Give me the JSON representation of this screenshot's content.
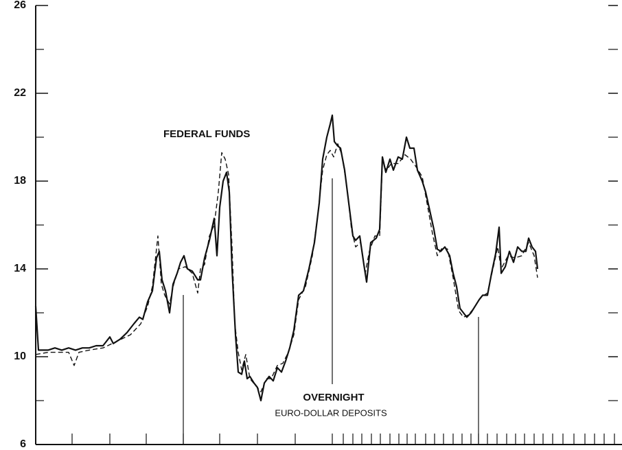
{
  "chart_data": {
    "type": "line",
    "annotations": [
      "FEDERAL FUNDS",
      "OVERNIGHT",
      "EURO-DOLLAR DEPOSITS"
    ],
    "xlim": [
      0,
      854
    ],
    "xticks": [
      53,
      108,
      161,
      215,
      268,
      323,
      378,
      432,
      448,
      462,
      475,
      489,
      502,
      516,
      529,
      541,
      553,
      568,
      581,
      594,
      608,
      621,
      634,
      645,
      658,
      672,
      686,
      699,
      712,
      726,
      739,
      753,
      768,
      784,
      800,
      814,
      828,
      843
    ],
    "ylim": [
      6,
      26
    ],
    "yticks": [
      6,
      10,
      14,
      18,
      22,
      26
    ],
    "yminorticks": [
      8,
      12,
      16,
      20,
      24
    ],
    "grid": false,
    "series": [
      {
        "color": "#111111",
        "dash": false,
        "x": [
          0,
          4,
          18,
          28,
          38,
          48,
          58,
          68,
          78,
          88,
          98,
          108,
          113,
          123,
          133,
          143,
          151,
          156,
          163,
          170,
          176,
          180,
          184,
          189,
          195,
          200,
          206,
          211,
          216,
          221,
          228,
          236,
          240,
          246,
          253,
          260,
          264,
          268,
          273,
          278,
          282,
          286,
          291,
          295,
          300,
          304,
          308,
          312,
          318,
          323,
          328,
          333,
          340,
          346,
          352,
          358,
          364,
          370,
          376,
          383,
          390,
          398,
          406,
          413,
          418,
          424,
          429,
          432,
          435,
          440,
          444,
          450,
          456,
          462,
          466,
          472,
          478,
          482,
          488,
          496,
          501,
          505,
          510,
          516,
          521,
          528,
          534,
          540,
          545,
          551,
          556,
          563,
          568,
          573,
          580,
          585,
          590,
          596,
          603,
          608,
          613,
          618,
          623,
          628,
          634,
          640,
          646,
          651,
          658,
          664,
          670,
          675,
          678,
          684,
          690,
          696,
          702,
          708,
          714,
          718,
          723,
          728,
          731
        ],
        "values": [
          12.3,
          10.3,
          10.3,
          10.4,
          10.3,
          10.4,
          10.3,
          10.4,
          10.4,
          10.5,
          10.5,
          10.9,
          10.6,
          10.8,
          11.1,
          11.5,
          11.8,
          11.7,
          12.5,
          13.0,
          14.5,
          14.8,
          13.5,
          13.0,
          12.0,
          13.3,
          13.8,
          14.3,
          14.6,
          14.0,
          13.9,
          13.5,
          13.5,
          14.5,
          15.3,
          16.3,
          14.6,
          16.8,
          18.0,
          18.4,
          17.5,
          14.0,
          11.0,
          9.3,
          9.2,
          9.8,
          9.0,
          9.1,
          8.8,
          8.6,
          8.0,
          8.8,
          9.1,
          8.9,
          9.5,
          9.3,
          9.8,
          10.4,
          11.2,
          12.8,
          13.0,
          14.0,
          15.2,
          17.0,
          19.0,
          20.0,
          20.6,
          21.0,
          19.8,
          19.6,
          19.5,
          18.5,
          17.0,
          15.5,
          15.3,
          15.5,
          14.2,
          13.4,
          15.2,
          15.4,
          15.8,
          19.1,
          18.4,
          19.0,
          18.5,
          19.1,
          19.0,
          20.0,
          19.5,
          19.5,
          18.5,
          18.0,
          17.5,
          16.8,
          15.8,
          14.9,
          14.8,
          15.0,
          14.6,
          13.8,
          13.2,
          12.2,
          12.0,
          11.8,
          12.0,
          12.3,
          12.6,
          12.8,
          12.8,
          13.8,
          14.7,
          15.9,
          13.8,
          14.1,
          14.8,
          14.3,
          15.0,
          14.8,
          14.8,
          15.4,
          15.0,
          14.8,
          14.0
        ]
      },
      {
        "color": "#111111",
        "dash": true,
        "x": [
          0,
          18,
          48,
          56,
          63,
          78,
          98,
          118,
          138,
          153,
          163,
          170,
          178,
          183,
          188,
          195,
          201,
          208,
          218,
          228,
          236,
          240,
          246,
          253,
          260,
          266,
          271,
          276,
          281,
          286,
          290,
          295,
          300,
          306,
          312,
          320,
          328,
          336,
          343,
          352,
          360,
          368,
          376,
          383,
          393,
          403,
          411,
          418,
          424,
          429,
          434,
          440,
          446,
          453,
          460,
          466,
          473,
          480,
          486,
          494,
          501,
          505,
          511,
          518,
          528,
          538,
          546,
          553,
          563,
          570,
          578,
          585,
          593,
          600,
          608,
          616,
          623,
          630,
          638,
          648,
          658,
          666,
          673,
          678,
          688,
          698,
          708,
          718,
          726,
          731
        ],
        "values": [
          10.1,
          10.2,
          10.2,
          9.6,
          10.2,
          10.3,
          10.4,
          10.7,
          11.0,
          11.5,
          12.3,
          13.2,
          15.5,
          13.3,
          12.8,
          12.4,
          13.3,
          14.0,
          14.1,
          13.8,
          12.9,
          14.0,
          14.2,
          15.5,
          16.0,
          17.5,
          19.3,
          19.0,
          18.3,
          15.0,
          11.5,
          10.2,
          9.4,
          10.1,
          9.0,
          8.7,
          8.4,
          9.0,
          9.0,
          9.6,
          9.7,
          10.2,
          11.0,
          12.6,
          13.2,
          14.6,
          16.5,
          18.5,
          19.2,
          19.4,
          19.1,
          19.7,
          19.2,
          17.8,
          15.8,
          15.0,
          15.2,
          13.8,
          14.8,
          15.5,
          15.5,
          18.8,
          18.5,
          18.8,
          18.8,
          19.2,
          19.0,
          18.7,
          18.2,
          17.0,
          15.6,
          14.6,
          15.0,
          14.9,
          13.6,
          12.1,
          11.8,
          11.9,
          12.2,
          12.7,
          12.9,
          14.0,
          15.0,
          14.0,
          14.6,
          14.5,
          14.6,
          15.2,
          14.6,
          13.6
        ]
      }
    ]
  }
}
